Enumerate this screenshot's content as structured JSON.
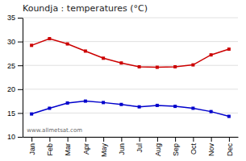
{
  "chart_data": {
    "type": "line",
    "title": "Koundja : temperatures (°C)",
    "categories": [
      "Jan",
      "Feb",
      "Mar",
      "Apr",
      "May",
      "Jun",
      "Jul",
      "Aug",
      "Sep",
      "Oct",
      "Nov",
      "Dec"
    ],
    "series": [
      {
        "color": "#cc0000",
        "marker": "square",
        "values": [
          29.2,
          30.6,
          29.5,
          28.0,
          26.5,
          25.5,
          24.7,
          24.6,
          24.7,
          25.1,
          27.2,
          28.4
        ]
      },
      {
        "color": "#0000cc",
        "marker": "square",
        "values": [
          14.8,
          16.0,
          17.1,
          17.5,
          17.2,
          16.8,
          16.3,
          16.6,
          16.4,
          16.0,
          15.3,
          14.3
        ]
      }
    ],
    "ylim": [
      10,
      35
    ],
    "yticks": [
      10,
      15,
      20,
      25,
      30,
      35
    ],
    "grid": true,
    "annotations": [
      "www.allmetsat.com"
    ]
  }
}
